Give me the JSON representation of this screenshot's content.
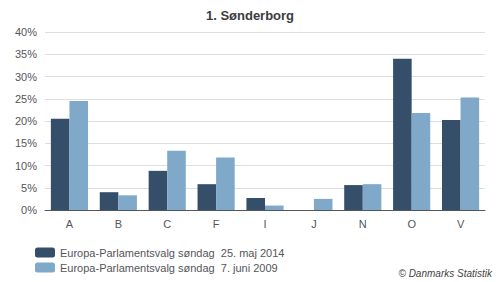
{
  "chart_data": {
    "type": "bar",
    "title": "1. Sønderborg",
    "categories": [
      "A",
      "B",
      "C",
      "F",
      "I",
      "J",
      "N",
      "O",
      "V"
    ],
    "series": [
      {
        "name": "Europa-Parlamentsvalg søndag  25. maj 2014",
        "color": "#354F6B",
        "values": [
          20.5,
          4.0,
          8.8,
          5.8,
          2.7,
          0.0,
          5.6,
          34.0,
          20.2
        ]
      },
      {
        "name": "Europa-Parlamentsvalg søndag  7. juni 2009",
        "color": "#7FA8C9",
        "values": [
          24.5,
          3.3,
          13.3,
          11.8,
          1.0,
          2.5,
          5.8,
          21.8,
          25.3
        ]
      }
    ],
    "ylim": [
      0,
      40
    ],
    "yticks": [
      {
        "value": 0,
        "label": "0%"
      },
      {
        "value": 5,
        "label": "5%"
      },
      {
        "value": 10,
        "label": "10%"
      },
      {
        "value": 15,
        "label": "15%"
      },
      {
        "value": 20,
        "label": "20%"
      },
      {
        "value": 25,
        "label": "25%"
      },
      {
        "value": 30,
        "label": "30%"
      },
      {
        "value": 35,
        "label": "35%"
      },
      {
        "value": 40,
        "label": "40%"
      }
    ],
    "grid": true,
    "legend": "bottom",
    "annotations": [
      "© Danmarks Statistik"
    ]
  }
}
